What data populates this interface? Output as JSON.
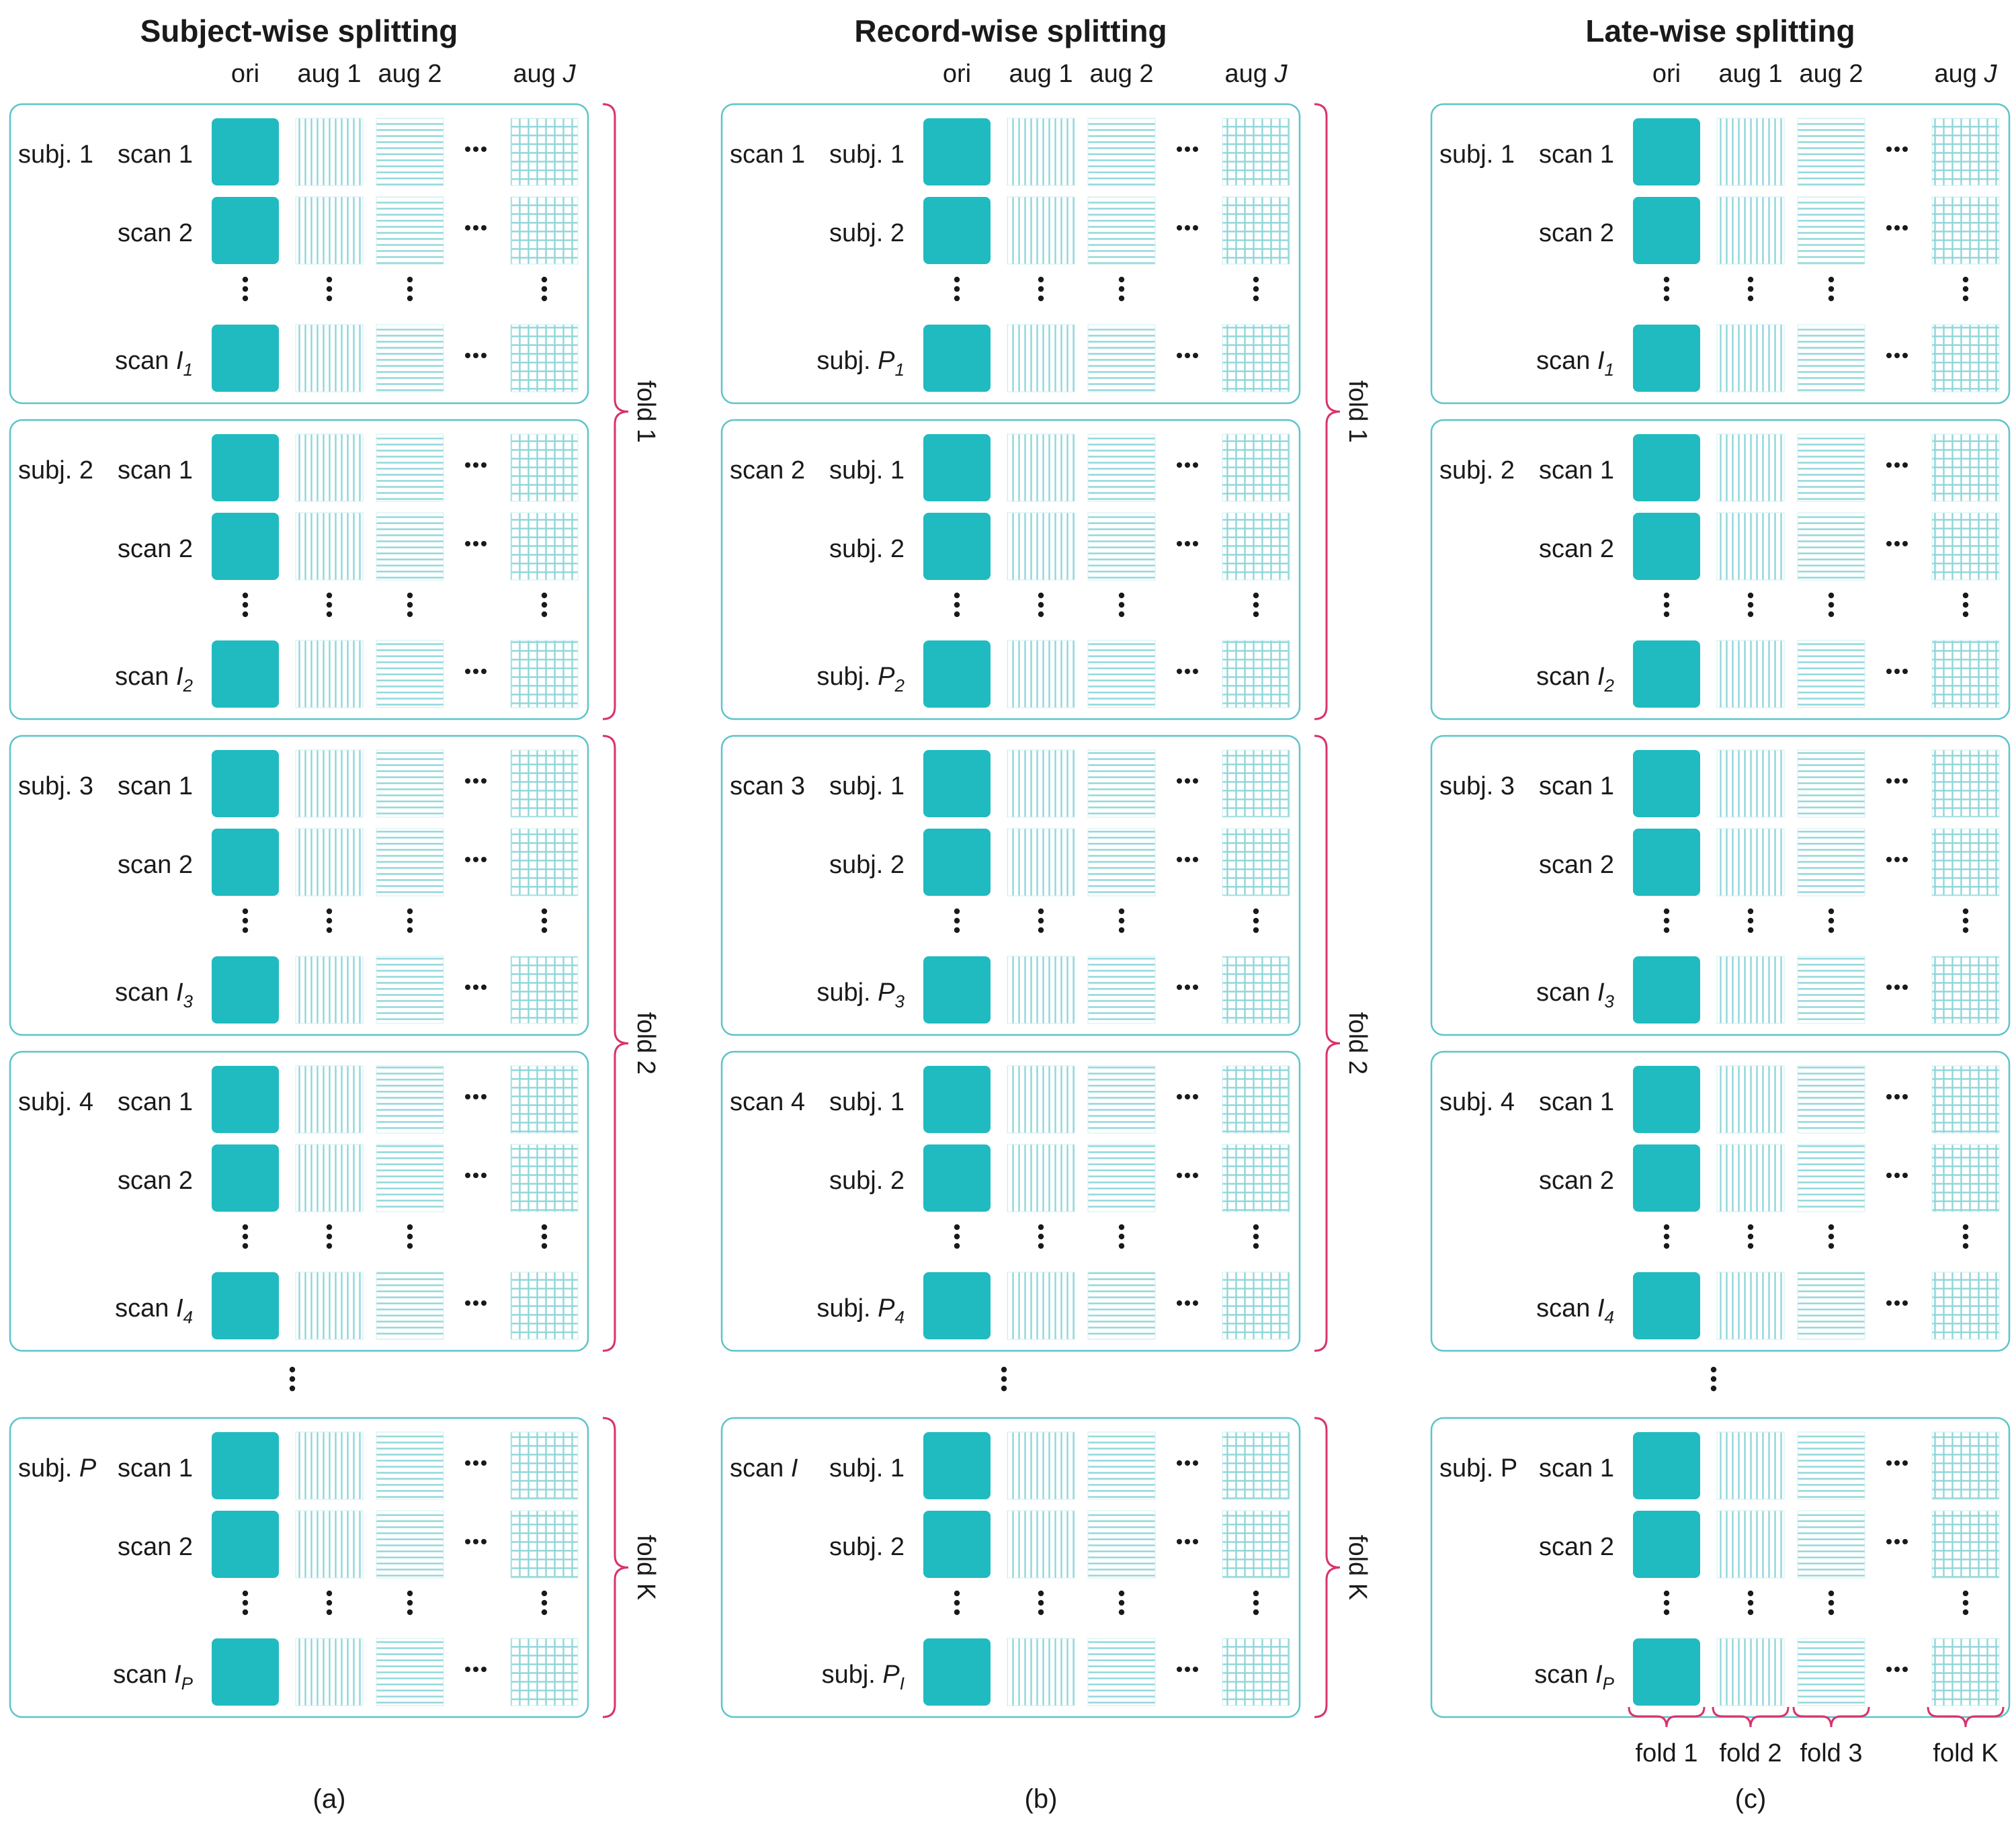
{
  "colors": {
    "accent": "#1FBBC0",
    "box_border": "#5CC4C9",
    "pattern_line": "#8FD6DA",
    "brace": "#D8336C",
    "text": "#1a1a1a"
  },
  "ellipsis_symbol": "⋯",
  "vertical_ellipsis_symbol": "⋮",
  "panels": [
    {
      "key": "a",
      "title": "Subject-wise splitting",
      "caption": "(a)",
      "columns": [
        {
          "text": "ori",
          "italic": ""
        },
        {
          "text": "aug 1",
          "italic": ""
        },
        {
          "text": "aug 2",
          "italic": ""
        },
        {
          "text": "aug ",
          "italic": "J"
        }
      ],
      "side_folds": [
        "fold 1",
        "fold 2",
        "fold K"
      ],
      "bottom_folds": [],
      "groups": [
        {
          "outer": {
            "text": "subj. 1",
            "italic": ""
          },
          "rows": [
            {
              "text": "scan 1",
              "italic": "",
              "sub": ""
            },
            {
              "text": "scan 2",
              "italic": "",
              "sub": ""
            },
            {
              "text": "scan ",
              "italic": "I",
              "sub": "1"
            }
          ]
        },
        {
          "outer": {
            "text": "subj. 2",
            "italic": ""
          },
          "rows": [
            {
              "text": "scan 1",
              "italic": "",
              "sub": ""
            },
            {
              "text": "scan 2",
              "italic": "",
              "sub": ""
            },
            {
              "text": "scan ",
              "italic": "I",
              "sub": "2"
            }
          ]
        },
        {
          "outer": {
            "text": "subj. 3",
            "italic": ""
          },
          "rows": [
            {
              "text": "scan 1",
              "italic": "",
              "sub": ""
            },
            {
              "text": "scan 2",
              "italic": "",
              "sub": ""
            },
            {
              "text": "scan ",
              "italic": "I",
              "sub": "3"
            }
          ]
        },
        {
          "outer": {
            "text": "subj. 4",
            "italic": ""
          },
          "rows": [
            {
              "text": "scan 1",
              "italic": "",
              "sub": ""
            },
            {
              "text": "scan 2",
              "italic": "",
              "sub": ""
            },
            {
              "text": "scan ",
              "italic": "I",
              "sub": "4"
            }
          ]
        },
        {
          "outer": {
            "text": "subj. ",
            "italic": "P"
          },
          "rows": [
            {
              "text": "scan 1",
              "italic": "",
              "sub": ""
            },
            {
              "text": "scan 2",
              "italic": "",
              "sub": ""
            },
            {
              "text": "scan ",
              "italic": "I",
              "sub": "P"
            }
          ]
        }
      ]
    },
    {
      "key": "b",
      "title": "Record-wise splitting",
      "caption": "(b)",
      "columns": [
        {
          "text": "ori",
          "italic": ""
        },
        {
          "text": "aug 1",
          "italic": ""
        },
        {
          "text": "aug 2",
          "italic": ""
        },
        {
          "text": "aug ",
          "italic": "J"
        }
      ],
      "side_folds": [
        "fold 1",
        "fold 2",
        "fold K"
      ],
      "bottom_folds": [],
      "groups": [
        {
          "outer": {
            "text": "scan 1",
            "italic": ""
          },
          "rows": [
            {
              "text": "subj. 1",
              "italic": "",
              "sub": ""
            },
            {
              "text": "subj. 2",
              "italic": "",
              "sub": ""
            },
            {
              "text": "subj. ",
              "italic": "P",
              "sub": "1"
            }
          ]
        },
        {
          "outer": {
            "text": "scan 2",
            "italic": ""
          },
          "rows": [
            {
              "text": "subj. 1",
              "italic": "",
              "sub": ""
            },
            {
              "text": "subj. 2",
              "italic": "",
              "sub": ""
            },
            {
              "text": "subj. ",
              "italic": "P",
              "sub": "2"
            }
          ]
        },
        {
          "outer": {
            "text": "scan 3",
            "italic": ""
          },
          "rows": [
            {
              "text": "subj. 1",
              "italic": "",
              "sub": ""
            },
            {
              "text": "subj. 2",
              "italic": "",
              "sub": ""
            },
            {
              "text": "subj. ",
              "italic": "P",
              "sub": "3"
            }
          ]
        },
        {
          "outer": {
            "text": "scan 4",
            "italic": ""
          },
          "rows": [
            {
              "text": "subj. 1",
              "italic": "",
              "sub": ""
            },
            {
              "text": "subj. 2",
              "italic": "",
              "sub": ""
            },
            {
              "text": "subj. ",
              "italic": "P",
              "sub": "4"
            }
          ]
        },
        {
          "outer": {
            "text": "scan ",
            "italic": "I"
          },
          "rows": [
            {
              "text": "subj. 1",
              "italic": "",
              "sub": ""
            },
            {
              "text": "subj. 2",
              "italic": "",
              "sub": ""
            },
            {
              "text": "subj. ",
              "italic": "P",
              "sub": "I"
            }
          ]
        }
      ]
    },
    {
      "key": "c",
      "title": "Late-wise splitting",
      "caption": "(c)",
      "columns": [
        {
          "text": "ori",
          "italic": ""
        },
        {
          "text": "aug 1",
          "italic": ""
        },
        {
          "text": "aug 2",
          "italic": ""
        },
        {
          "text": "aug ",
          "italic": "J"
        }
      ],
      "side_folds": [],
      "bottom_folds": [
        "fold 1",
        "fold 2",
        "fold 3",
        "fold K"
      ],
      "groups": [
        {
          "outer": {
            "text": "subj. 1",
            "italic": ""
          },
          "rows": [
            {
              "text": "scan 1",
              "italic": "",
              "sub": ""
            },
            {
              "text": "scan 2",
              "italic": "",
              "sub": ""
            },
            {
              "text": "scan ",
              "italic": "I",
              "sub": "1"
            }
          ]
        },
        {
          "outer": {
            "text": "subj. 2",
            "italic": ""
          },
          "rows": [
            {
              "text": "scan 1",
              "italic": "",
              "sub": ""
            },
            {
              "text": "scan 2",
              "italic": "",
              "sub": ""
            },
            {
              "text": "scan ",
              "italic": "I",
              "sub": "2"
            }
          ]
        },
        {
          "outer": {
            "text": "subj. 3",
            "italic": ""
          },
          "rows": [
            {
              "text": "scan 1",
              "italic": "",
              "sub": ""
            },
            {
              "text": "scan 2",
              "italic": "",
              "sub": ""
            },
            {
              "text": "scan ",
              "italic": "I",
              "sub": "3"
            }
          ]
        },
        {
          "outer": {
            "text": "subj. 4",
            "italic": ""
          },
          "rows": [
            {
              "text": "scan 1",
              "italic": "",
              "sub": ""
            },
            {
              "text": "scan 2",
              "italic": "",
              "sub": ""
            },
            {
              "text": "scan ",
              "italic": "I",
              "sub": "4"
            }
          ]
        },
        {
          "outer": {
            "text": "subj. P",
            "italic": ""
          },
          "rows": [
            {
              "text": "scan 1",
              "italic": "",
              "sub": ""
            },
            {
              "text": "scan 2",
              "italic": "",
              "sub": ""
            },
            {
              "text": "scan ",
              "italic": "I",
              "sub": "P"
            }
          ]
        }
      ]
    }
  ]
}
